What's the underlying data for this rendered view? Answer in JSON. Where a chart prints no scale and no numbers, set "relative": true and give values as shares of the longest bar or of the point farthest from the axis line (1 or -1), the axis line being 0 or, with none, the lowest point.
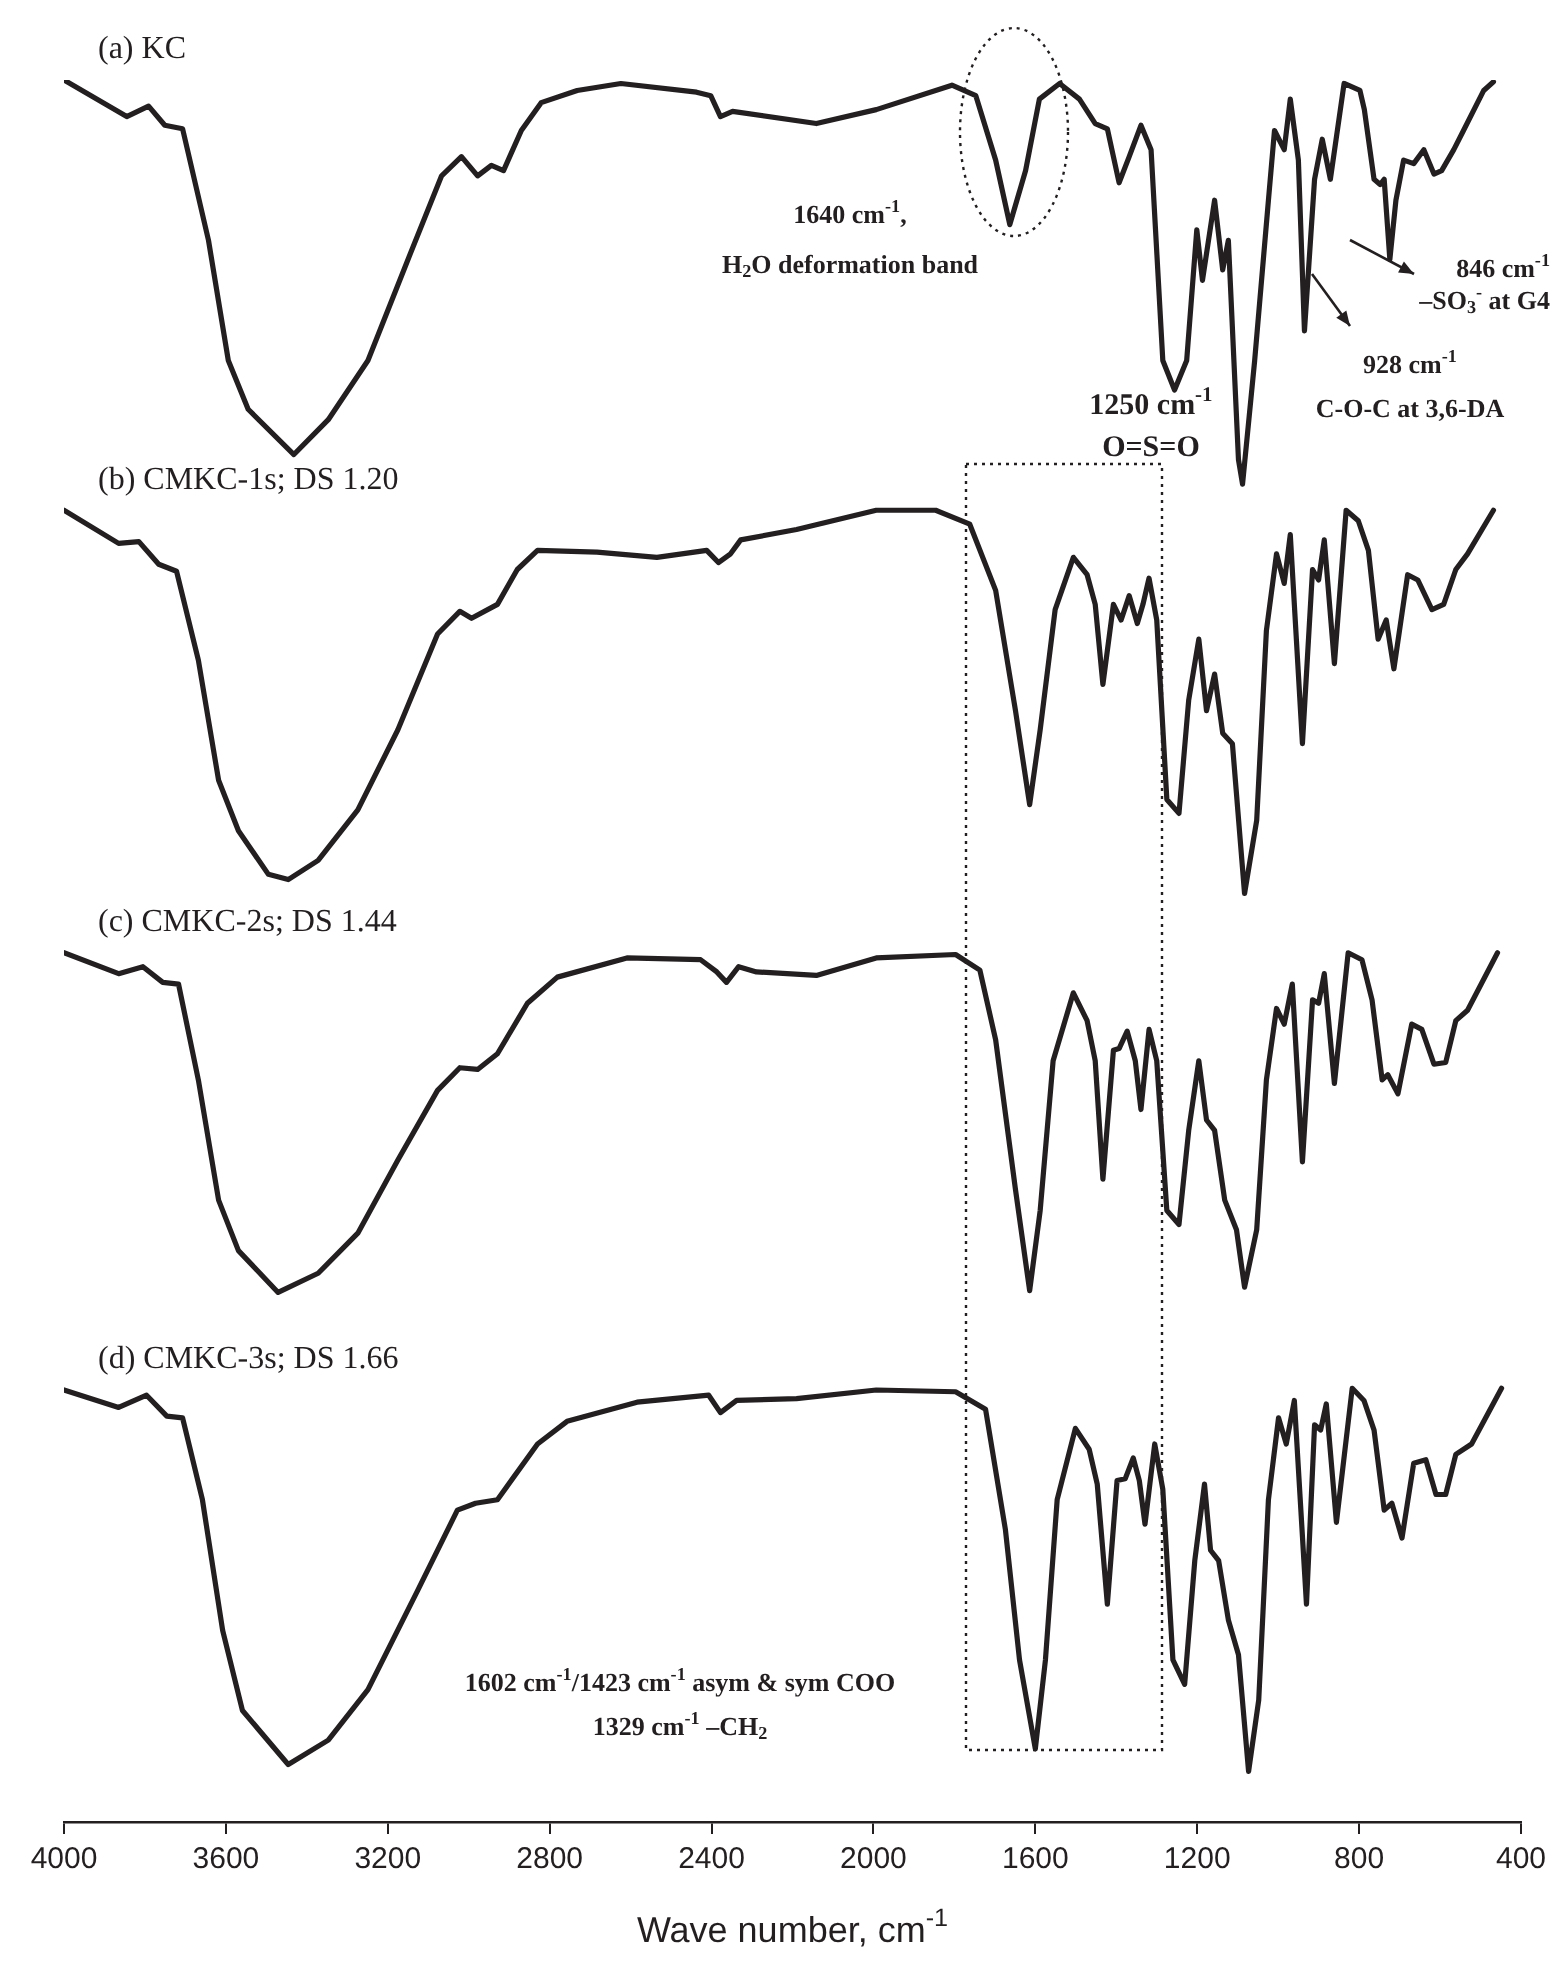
{
  "chart_data": {
    "type": "line",
    "relative": true,
    "xlabel": "Wave number, cm$^{-1}$",
    "xlim": [
      4000,
      400
    ],
    "xticks": [
      4000,
      3600,
      3200,
      2800,
      2400,
      2000,
      1600,
      1200,
      800,
      400
    ],
    "grid": false,
    "legend": false,
    "annotations": [
      "1640 cm$^{-1}$,\nH$_{2}$O deformation band",
      {
        "text": "1250 cm$^{-1}$\nO=S=O",
        "x": 1250,
        "y": 0.822
      },
      "928 cm$^{-1}$\nC-O-C at 3,6-DA",
      "846 cm$^{-1}$\n–SO$_{3}$$^{-}$ at G4",
      "1602 cm$^{-1}$/1423 cm$^{-1}$ asym & sym COO\n1329 cm$^{-1}$ –CH$_{2}$"
    ],
    "series": [
      {
        "name": "(a) KC",
        "color": "#231f20",
        "x": [
          4000,
          3845,
          3791,
          3751,
          3707,
          3643,
          3594,
          3545,
          3432,
          3347,
          3249,
          3150,
          3067,
          3018,
          2978,
          2944,
          2914,
          2870,
          2821,
          2732,
          2624,
          2437,
          2402,
          2378,
          2348,
          2141,
          1993,
          1806,
          1747,
          1698,
          1663,
          1624,
          1590,
          1540,
          1491,
          1452,
          1422,
          1393,
          1368,
          1339,
          1314,
          1285,
          1256,
          1226,
          1201,
          1187,
          1157,
          1137,
          1123,
          1098,
          1088,
          1058,
          1024,
          1009,
          985,
          970,
          950,
          935,
          910,
          891,
          871,
          837,
          798,
          787,
          763,
          748,
          738,
          724,
          709,
          690,
          665,
          640,
          615,
          596,
          566,
          542,
          492,
          468
        ],
        "values": [
          1,
          0.979,
          0.985,
          0.974,
          0.972,
          0.908,
          0.839,
          0.811,
          0.785,
          0.805,
          0.839,
          0.897,
          0.945,
          0.956,
          0.945,
          0.951,
          0.948,
          0.971,
          0.987,
          0.994,
          0.998,
          0.993,
          0.991,
          0.979,
          0.982,
          0.975,
          0.983,
          0.997,
          0.991,
          0.954,
          0.917,
          0.948,
          0.989,
          0.998,
          0.989,
          0.975,
          0.972,
          0.941,
          0.956,
          0.974,
          0.96,
          0.839,
          0.822,
          0.839,
          0.914,
          0.885,
          0.931,
          0.891,
          0.908,
          0.782,
          0.768,
          0.839,
          0.931,
          0.971,
          0.96,
          0.989,
          0.954,
          0.856,
          0.943,
          0.966,
          0.943,
          0.998,
          0.994,
          0.983,
          0.943,
          0.94,
          0.943,
          0.897,
          0.931,
          0.954,
          0.952,
          0.96,
          0.946,
          0.948,
          0.96,
          0.971,
          0.994,
          0.999
        ]
      },
      {
        "name": "(b) CMKC-1s; DS 1.20",
        "color": "#231f20",
        "x": [
          4000,
          3865,
          3815,
          3766,
          3722,
          3668,
          3618,
          3569,
          3495,
          3446,
          3372,
          3274,
          3175,
          3077,
          3022,
          2993,
          2929,
          2880,
          2830,
          2683,
          2535,
          2412,
          2383,
          2353,
          2328,
          2190,
          1993,
          1846,
          1762,
          1698,
          1649,
          1614,
          1588,
          1551,
          1506,
          1472,
          1452,
          1433,
          1407,
          1388,
          1368,
          1348,
          1334,
          1319,
          1300,
          1275,
          1245,
          1221,
          1196,
          1177,
          1157,
          1137,
          1113,
          1083,
          1053,
          1029,
          1004,
          985,
          970,
          940,
          915,
          900,
          886,
          861,
          832,
          802,
          777,
          753,
          733,
          714,
          680,
          655,
          620,
          591,
          561,
          532,
          468
        ],
        "values": [
          0.753,
          0.734,
          0.735,
          0.722,
          0.718,
          0.667,
          0.598,
          0.569,
          0.544,
          0.541,
          0.552,
          0.581,
          0.627,
          0.682,
          0.695,
          0.691,
          0.699,
          0.719,
          0.73,
          0.729,
          0.726,
          0.73,
          0.723,
          0.728,
          0.736,
          0.742,
          0.753,
          0.753,
          0.745,
          0.707,
          0.638,
          0.584,
          0.627,
          0.696,
          0.726,
          0.716,
          0.699,
          0.653,
          0.699,
          0.69,
          0.704,
          0.688,
          0.699,
          0.714,
          0.69,
          0.587,
          0.579,
          0.644,
          0.679,
          0.638,
          0.659,
          0.625,
          0.619,
          0.533,
          0.575,
          0.684,
          0.728,
          0.711,
          0.739,
          0.619,
          0.719,
          0.713,
          0.736,
          0.665,
          0.753,
          0.747,
          0.73,
          0.679,
          0.69,
          0.662,
          0.716,
          0.713,
          0.696,
          0.699,
          0.719,
          0.728,
          0.753
        ]
      },
      {
        "name": "(c) CMKC-2s; DS 1.44",
        "color": "#231f20",
        "x": [
          4000,
          3865,
          3805,
          3756,
          3717,
          3668,
          3618,
          3569,
          3471,
          3372,
          3274,
          3175,
          3077,
          3022,
          2978,
          2929,
          2855,
          2781,
          2609,
          2427,
          2387,
          2363,
          2333,
          2289,
          2141,
          1993,
          1797,
          1737,
          1698,
          1649,
          1614,
          1588,
          1556,
          1506,
          1472,
          1452,
          1433,
          1407,
          1393,
          1373,
          1353,
          1339,
          1319,
          1300,
          1275,
          1245,
          1221,
          1196,
          1177,
          1157,
          1132,
          1103,
          1083,
          1053,
          1029,
          1004,
          985,
          965,
          940,
          915,
          900,
          886,
          861,
          827,
          793,
          768,
          743,
          729,
          704,
          670,
          645,
          615,
          586,
          561,
          532,
          458
        ],
        "values": [
          0.499,
          0.487,
          0.491,
          0.482,
          0.481,
          0.426,
          0.357,
          0.328,
          0.304,
          0.315,
          0.338,
          0.38,
          0.42,
          0.433,
          0.432,
          0.441,
          0.47,
          0.485,
          0.496,
          0.495,
          0.488,
          0.482,
          0.491,
          0.488,
          0.486,
          0.496,
          0.498,
          0.489,
          0.449,
          0.363,
          0.305,
          0.351,
          0.437,
          0.476,
          0.46,
          0.437,
          0.369,
          0.443,
          0.444,
          0.454,
          0.437,
          0.409,
          0.455,
          0.437,
          0.351,
          0.343,
          0.397,
          0.437,
          0.403,
          0.397,
          0.357,
          0.34,
          0.307,
          0.34,
          0.426,
          0.467,
          0.458,
          0.481,
          0.379,
          0.472,
          0.47,
          0.487,
          0.424,
          0.499,
          0.495,
          0.472,
          0.426,
          0.429,
          0.418,
          0.458,
          0.455,
          0.435,
          0.436,
          0.46,
          0.466,
          0.499
        ]
      },
      {
        "name": "(d) CMKC-3s; DS 1.66",
        "color": "#231f20",
        "x": [
          4000,
          3865,
          3796,
          3746,
          3707,
          3658,
          3608,
          3559,
          3446,
          3347,
          3249,
          3126,
          3028,
          2983,
          2929,
          2830,
          2757,
          2584,
          2407,
          2378,
          2338,
          2190,
          1993,
          1797,
          1723,
          1674,
          1639,
          1600,
          1575,
          1546,
          1501,
          1467,
          1447,
          1422,
          1398,
          1378,
          1358,
          1343,
          1329,
          1305,
          1285,
          1260,
          1231,
          1206,
          1182,
          1167,
          1147,
          1123,
          1098,
          1073,
          1048,
          1024,
          999,
          980,
          960,
          930,
          910,
          895,
          881,
          856,
          817,
          788,
          763,
          738,
          719,
          694,
          665,
          635,
          610,
          586,
          561,
          522,
          448
        ],
        "values": [
          0.248,
          0.238,
          0.245,
          0.233,
          0.232,
          0.185,
          0.11,
          0.064,
          0.033,
          0.047,
          0.076,
          0.133,
          0.179,
          0.183,
          0.185,
          0.217,
          0.23,
          0.241,
          0.245,
          0.235,
          0.242,
          0.243,
          0.248,
          0.247,
          0.237,
          0.168,
          0.093,
          0.042,
          0.093,
          0.185,
          0.226,
          0.214,
          0.194,
          0.125,
          0.196,
          0.197,
          0.209,
          0.196,
          0.171,
          0.217,
          0.191,
          0.093,
          0.079,
          0.15,
          0.194,
          0.156,
          0.15,
          0.116,
          0.096,
          0.029,
          0.07,
          0.185,
          0.232,
          0.217,
          0.242,
          0.125,
          0.228,
          0.225,
          0.24,
          0.172,
          0.249,
          0.242,
          0.225,
          0.179,
          0.183,
          0.163,
          0.206,
          0.208,
          0.188,
          0.188,
          0.211,
          0.217,
          0.249
        ]
      }
    ]
  }
}
